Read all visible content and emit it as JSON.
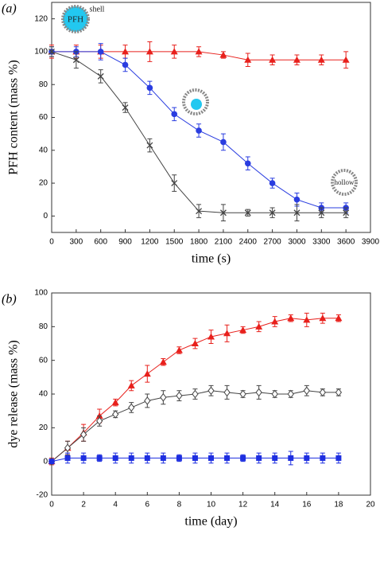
{
  "chart_data": [
    {
      "type": "line",
      "panel": "(a)",
      "xlabel": "time (s)",
      "ylabel": "PFH content (mass %)",
      "xlim": [
        0,
        3900
      ],
      "xticks": [
        0,
        300,
        600,
        900,
        1200,
        1500,
        1800,
        2100,
        2400,
        2700,
        3000,
        3300,
        3600,
        3900
      ],
      "ylim": [
        -10,
        130
      ],
      "yticks": [
        0,
        20,
        40,
        60,
        80,
        100,
        120
      ],
      "annotations": [
        "PFH",
        "shell",
        "hollow"
      ],
      "x": [
        0,
        300,
        600,
        900,
        1200,
        1500,
        1800,
        2100,
        2400,
        2700,
        3000,
        3300,
        3600
      ],
      "series": [
        {
          "color": "#e8201c",
          "marker": "triangle",
          "values": [
            100,
            100,
            100,
            100,
            100,
            100,
            100,
            98,
            95,
            95,
            95,
            95,
            95
          ],
          "errors": [
            4,
            4,
            4,
            4,
            6,
            4,
            3,
            2,
            4,
            3,
            3,
            3,
            5
          ]
        },
        {
          "color": "#2a3de0",
          "marker": "circle",
          "values": [
            100,
            100,
            100,
            92,
            78,
            62,
            52,
            45,
            32,
            20,
            10,
            5,
            5
          ],
          "errors": [
            3,
            3,
            5,
            4,
            4,
            4,
            4,
            5,
            4,
            3,
            4,
            3,
            3
          ]
        },
        {
          "color": "#444444",
          "marker": "x",
          "values": [
            100,
            95,
            85,
            66,
            43,
            20,
            3,
            2,
            2,
            2,
            2,
            2,
            2
          ],
          "errors": [
            3,
            5,
            4,
            3,
            4,
            5,
            4,
            5,
            2,
            3,
            5,
            3,
            3
          ]
        }
      ]
    },
    {
      "type": "line",
      "panel": "(b)",
      "xlabel": "time (day)",
      "ylabel": "dye release (mass %)",
      "xlim": [
        0,
        20
      ],
      "xticks": [
        0,
        2,
        4,
        6,
        8,
        10,
        12,
        14,
        16,
        18,
        20
      ],
      "ylim": [
        -20,
        100
      ],
      "yticks": [
        -20,
        0,
        20,
        40,
        60,
        80,
        100
      ],
      "x": [
        0,
        1,
        2,
        3,
        4,
        5,
        6,
        7,
        8,
        9,
        10,
        11,
        12,
        13,
        14,
        15,
        16,
        17,
        18
      ],
      "series": [
        {
          "color": "#e8201c",
          "marker": "triangle",
          "values": [
            0,
            8,
            17,
            27,
            35,
            45,
            52,
            59,
            66,
            70,
            74,
            76,
            78,
            80,
            83,
            85,
            84,
            85,
            85
          ],
          "errors": [
            2,
            4,
            5,
            4,
            2,
            3,
            5,
            2,
            2,
            3,
            4,
            5,
            2,
            3,
            3,
            2,
            4,
            3,
            2
          ]
        },
        {
          "color": "#444444",
          "marker": "diamond",
          "values": [
            0,
            8,
            16,
            24,
            28,
            32,
            36,
            38,
            39,
            40,
            42,
            41,
            40,
            41,
            40,
            40,
            42,
            41,
            41
          ],
          "errors": [
            1,
            4,
            4,
            3,
            2,
            3,
            4,
            4,
            3,
            3,
            3,
            4,
            2,
            4,
            2,
            2,
            3,
            2,
            2
          ]
        },
        {
          "color": "#1d2ee0",
          "marker": "square",
          "values": [
            0,
            2,
            2,
            2,
            2,
            2,
            2,
            2,
            2,
            2,
            2,
            2,
            2,
            2,
            2,
            2,
            2,
            2,
            2
          ],
          "errors": [
            1,
            3,
            3,
            2,
            3,
            3,
            3,
            3,
            2,
            3,
            3,
            3,
            2,
            3,
            3,
            4,
            3,
            3,
            3
          ]
        }
      ]
    }
  ]
}
